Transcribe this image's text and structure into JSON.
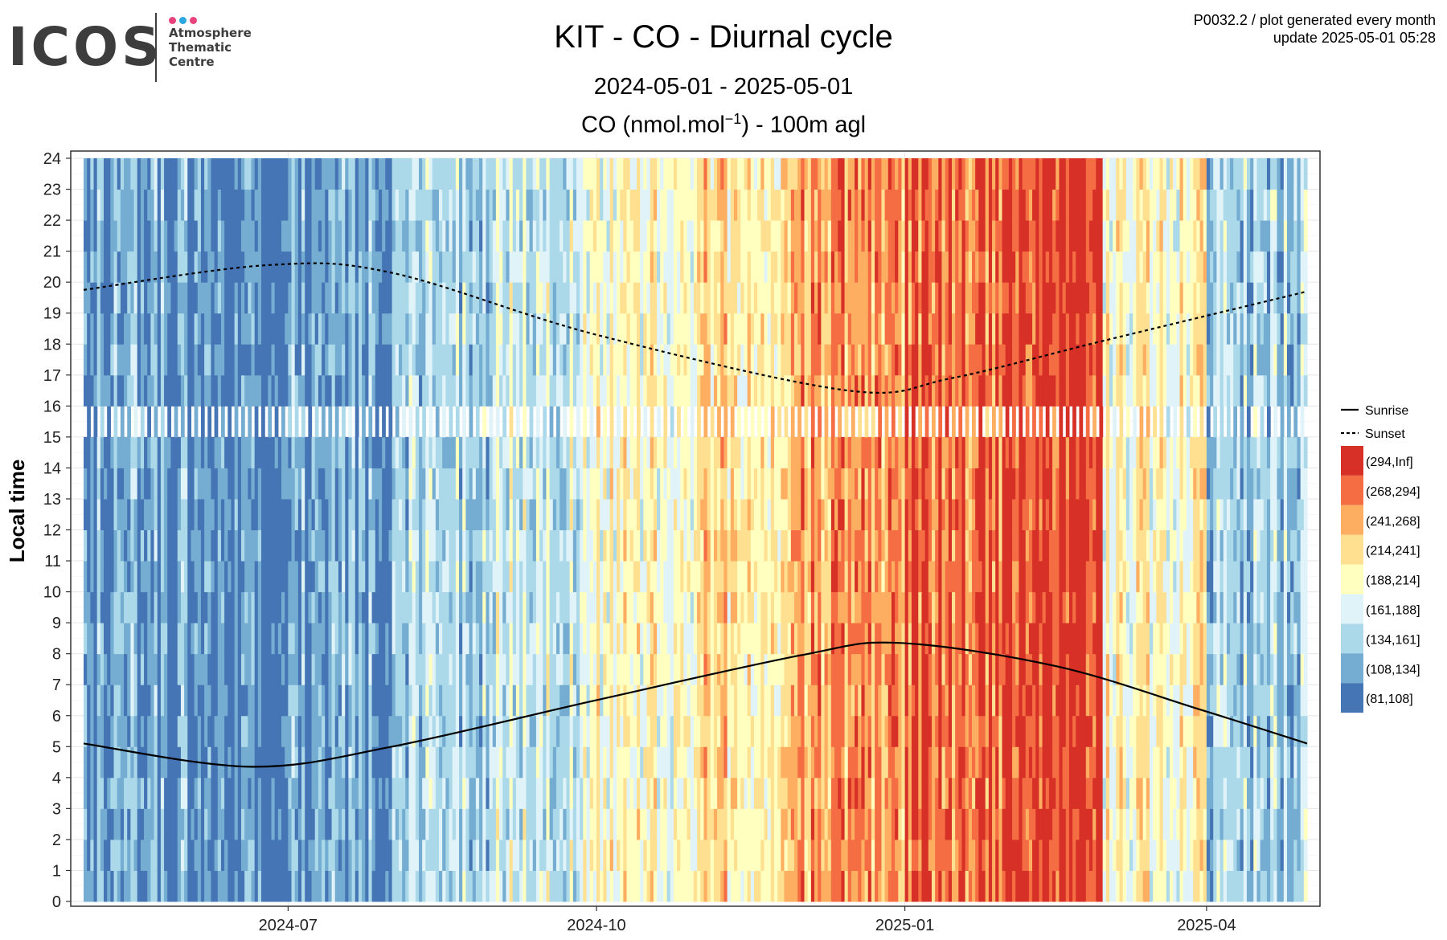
{
  "logo": {
    "wordmark": "ICOS",
    "lines": [
      "Atmosphere",
      "Thematic",
      "Centre"
    ],
    "dot_colors": [
      "#e8417b",
      "#2aa7e0",
      "#e8417b"
    ]
  },
  "header": {
    "title": "KIT - CO - Diurnal cycle",
    "period": "2024-05-01 - 2025-05-01",
    "variable_main": "CO (nmol.mol",
    "variable_sup": "−1",
    "variable_tail": ") - 100m agl"
  },
  "meta": {
    "line1": "P0032.2 / plot generated every month",
    "line2": "update  2025-05-01 05:28"
  },
  "chart_data": {
    "type": "heatmap",
    "title": "KIT - CO - Diurnal cycle",
    "subtitle": "2024-05-01 - 2025-05-01",
    "ylabel": "Local time",
    "xlabel": "",
    "x_range": [
      "2024-05-01",
      "2025-05-01"
    ],
    "ylim": [
      0,
      24
    ],
    "y_ticks": [
      0,
      1,
      2,
      3,
      4,
      5,
      6,
      7,
      8,
      9,
      10,
      11,
      12,
      13,
      14,
      15,
      16,
      17,
      18,
      19,
      20,
      21,
      22,
      23,
      24
    ],
    "x_ticks": [
      {
        "date": "2024-07-01",
        "label": "2024-07"
      },
      {
        "date": "2024-10-01",
        "label": "2024-10"
      },
      {
        "date": "2025-01-01",
        "label": "2025-01"
      },
      {
        "date": "2025-04-01",
        "label": "2025-04"
      }
    ],
    "grid": true,
    "legend_position": "right",
    "legend": [
      {
        "label": "Sunrise",
        "style": "solid"
      },
      {
        "label": "Sunset",
        "style": "dashed"
      }
    ],
    "bins": [
      {
        "label": "(294,Inf]",
        "color": "#d73027"
      },
      {
        "label": "(268,294]",
        "color": "#f46d43"
      },
      {
        "label": "(241,268]",
        "color": "#fdae61"
      },
      {
        "label": "(214,241]",
        "color": "#fee090"
      },
      {
        "label": "(188,214]",
        "color": "#ffffbf"
      },
      {
        "label": "(161,188]",
        "color": "#e0f3f8"
      },
      {
        "label": "(134,161]",
        "color": "#abd9e9"
      },
      {
        "label": "(108,134]",
        "color": "#74add1"
      },
      {
        "label": "(81,108]",
        "color": "#4575b4"
      }
    ],
    "monthly_dominant_bin": [
      {
        "month": "2024-05",
        "bin": "(108,134]"
      },
      {
        "month": "2024-06",
        "bin": "(81,108]"
      },
      {
        "month": "2024-07",
        "bin": "(108,134]"
      },
      {
        "month": "2024-08",
        "bin": "(134,161]"
      },
      {
        "month": "2024-09",
        "bin": "(161,188]"
      },
      {
        "month": "2024-10",
        "bin": "(188,214]"
      },
      {
        "month": "2024-11",
        "bin": "(214,241]"
      },
      {
        "month": "2024-12",
        "bin": "(241,268]"
      },
      {
        "month": "2025-01",
        "bin": "(268,294]"
      },
      {
        "month": "2025-02",
        "bin": "(294,Inf]"
      },
      {
        "month": "2025-03",
        "bin": "(188,214]"
      },
      {
        "month": "2025-04",
        "bin": "(134,161]"
      }
    ],
    "sunrise": [
      {
        "date": "2024-05-01",
        "hour": 5.1
      },
      {
        "date": "2024-06-20",
        "hour": 4.35
      },
      {
        "date": "2024-08-01",
        "hour": 5.0
      },
      {
        "date": "2024-10-01",
        "hour": 6.5
      },
      {
        "date": "2024-12-01",
        "hour": 7.95
      },
      {
        "date": "2024-12-30",
        "hour": 8.35
      },
      {
        "date": "2025-02-15",
        "hour": 7.6
      },
      {
        "date": "2025-03-30",
        "hour": 6.2
      },
      {
        "date": "2025-05-01",
        "hour": 5.1
      }
    ],
    "sunset": [
      {
        "date": "2024-05-01",
        "hour": 19.75
      },
      {
        "date": "2024-06-25",
        "hour": 20.55
      },
      {
        "date": "2024-08-01",
        "hour": 20.3
      },
      {
        "date": "2024-10-01",
        "hour": 18.3
      },
      {
        "date": "2024-12-15",
        "hour": 16.5
      },
      {
        "date": "2025-01-15",
        "hour": 16.9
      },
      {
        "date": "2025-03-01",
        "hour": 18.1
      },
      {
        "date": "2025-05-01",
        "hour": 19.7
      }
    ]
  }
}
